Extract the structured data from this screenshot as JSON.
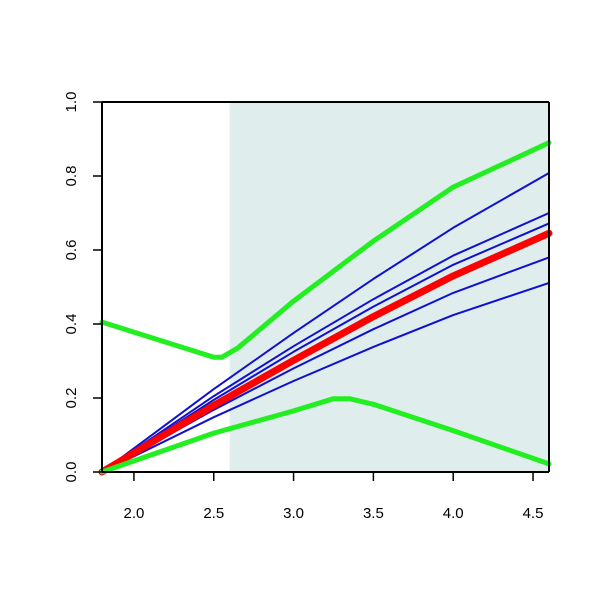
{
  "chart_data": {
    "type": "line",
    "title": "",
    "xlabel": "",
    "ylabel": "",
    "xlim": [
      1.8,
      4.6
    ],
    "ylim": [
      0.0,
      1.0
    ],
    "grid": false,
    "x_ticks": [
      2.0,
      2.5,
      3.0,
      3.5,
      4.0,
      4.5
    ],
    "x_tick_labels": [
      "2.0",
      "2.5",
      "3.0",
      "3.5",
      "4.0",
      "4.5"
    ],
    "y_ticks": [
      0.0,
      0.2,
      0.4,
      0.6,
      0.8,
      1.0
    ],
    "y_tick_labels": [
      "0.0",
      "0.2",
      "0.4",
      "0.6",
      "0.8",
      "1.0"
    ],
    "shaded_region": {
      "x": [
        2.6,
        4.6
      ],
      "color": "#e0eded"
    },
    "colors": {
      "blue": "#1010d0",
      "red": "#ff0000",
      "green": "#22ee22",
      "axis": "#000000"
    },
    "series": [
      {
        "color": "blue",
        "x": [
          1.8,
          2.5,
          3.0,
          3.5,
          4.0,
          4.6
        ],
        "y": [
          0.0,
          0.224,
          0.376,
          0.522,
          0.66,
          0.808
        ]
      },
      {
        "color": "blue",
        "x": [
          1.8,
          2.5,
          3.0,
          3.5,
          4.0,
          4.6
        ],
        "y": [
          0.0,
          0.205,
          0.34,
          0.467,
          0.585,
          0.7
        ]
      },
      {
        "color": "blue",
        "x": [
          1.8,
          2.5,
          3.0,
          3.5,
          4.0,
          4.6
        ],
        "y": [
          0.0,
          0.195,
          0.325,
          0.447,
          0.56,
          0.672
        ]
      },
      {
        "color": "blue",
        "x": [
          1.8,
          2.5,
          3.0,
          3.5,
          4.0,
          4.6
        ],
        "y": [
          0.0,
          0.168,
          0.28,
          0.386,
          0.484,
          0.58
        ]
      },
      {
        "color": "blue",
        "x": [
          1.8,
          2.5,
          3.0,
          3.5,
          4.0,
          4.6
        ],
        "y": [
          0.0,
          0.148,
          0.246,
          0.338,
          0.424,
          0.511
        ]
      },
      {
        "color": "red",
        "x": [
          1.8,
          2.5,
          3.0,
          3.5,
          4.0,
          4.6
        ],
        "y": [
          0.0,
          0.18,
          0.302,
          0.42,
          0.53,
          0.645
        ]
      },
      {
        "color": "green",
        "x": [
          1.8,
          2.5,
          2.55,
          2.65,
          3.0,
          3.5,
          4.0,
          4.6
        ],
        "y": [
          0.405,
          0.31,
          0.31,
          0.335,
          0.462,
          0.624,
          0.77,
          0.89
        ]
      },
      {
        "color": "green",
        "x": [
          1.8,
          2.5,
          3.0,
          3.25,
          3.35,
          3.5,
          4.0,
          4.6
        ],
        "y": [
          0.0,
          0.105,
          0.165,
          0.198,
          0.198,
          0.183,
          0.112,
          0.022
        ]
      }
    ]
  }
}
